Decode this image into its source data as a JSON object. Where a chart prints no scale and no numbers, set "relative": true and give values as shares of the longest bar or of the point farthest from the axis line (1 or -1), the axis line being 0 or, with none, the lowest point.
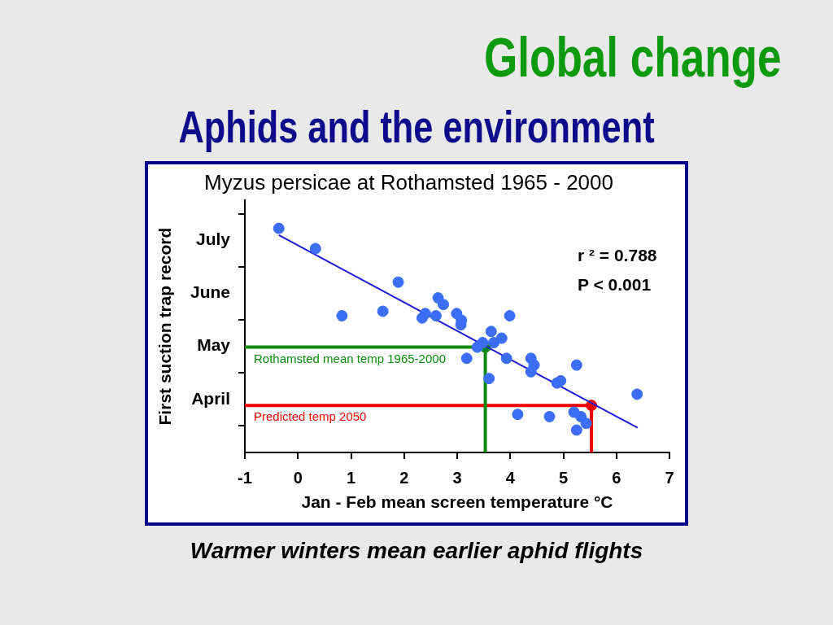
{
  "chart_data": {
    "type": "scatter",
    "title": "Myzus persicae at Rothamsted 1965 - 2000",
    "xlabel": "Jan - Feb mean screen temperature °C",
    "ylabel": "First suction trap record",
    "annotations": [
      "Global change",
      "Aphids and the environment",
      "r ² = 0.788",
      "P < 0.001",
      "Warmer winters mean earlier aphid flights"
    ],
    "xlim": [
      -1,
      7
    ],
    "xticks": [
      -1,
      0,
      1,
      2,
      3,
      4,
      5,
      6,
      7
    ],
    "relative": true,
    "y_categories": [
      null,
      "July",
      null,
      "June",
      null,
      "May",
      null,
      "April",
      null
    ],
    "grid": false,
    "legend": false,
    "marker": "circle",
    "series": [
      {
        "color": "#3b6ef5",
        "x": [
          -0.36,
          0.33,
          0.83,
          1.6,
          1.89,
          2.34,
          2.4,
          2.6,
          2.64,
          2.74,
          2.99,
          3.07,
          3.08,
          3.18,
          3.38,
          3.48,
          3.6,
          3.64,
          3.69,
          3.84,
          3.93,
          3.99,
          4.14,
          4.39,
          4.39,
          4.45,
          4.74,
          4.88,
          4.95,
          5.2,
          5.25,
          5.25,
          5.33,
          5.43,
          6.39
        ],
        "values": [
          1,
          0.91,
          0.61,
          0.63,
          0.76,
          0.6,
          0.62,
          0.61,
          0.69,
          0.66,
          0.62,
          0.57,
          0.59,
          0.42,
          0.47,
          0.49,
          0.33,
          0.54,
          0.49,
          0.51,
          0.42,
          0.61,
          0.17,
          0.42,
          0.36,
          0.39,
          0.16,
          0.31,
          0.32,
          0.18,
          0.39,
          0.1,
          0.16,
          0.13,
          0.26
        ]
      },
      {
        "type": "line",
        "color": "#1c1cd6",
        "x": [
          -0.36,
          6.4
        ],
        "values": [
          0.97,
          0.11
        ],
        "marker": "none"
      },
      {
        "color": "#0b8a0b",
        "x": [
          3.53
        ],
        "values": [
          0.47
        ]
      },
      {
        "type": "line",
        "name": "Rothamsted mean temp 1965-2000",
        "color": "#0b8a0b",
        "x": [
          -1,
          3.53,
          3.53
        ],
        "values": [
          0.47,
          0.47,
          0
        ],
        "marker": "none"
      },
      {
        "color": "#f00000",
        "x": [
          5.53
        ],
        "values": [
          0.21
        ]
      },
      {
        "type": "line",
        "name": "Predicted temp 2050",
        "color": "#f00000",
        "x": [
          -1,
          5.53,
          5.53
        ],
        "values": [
          0.21,
          0.21,
          0
        ],
        "marker": "none"
      }
    ]
  }
}
